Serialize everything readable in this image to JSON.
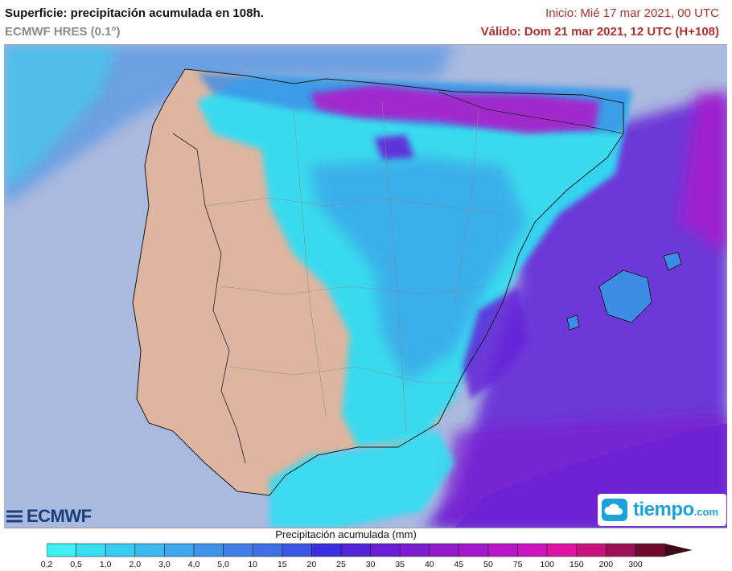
{
  "header": {
    "title": "Superficie: precipitación acumulada en 108h.",
    "model": "ECMWF HRES (0.1°)",
    "init": "Inicio: Mié 17 mar 2021, 00 UTC",
    "valid": "Válido: Dom 21 mar 2021, 12 UTC (H+108)"
  },
  "map": {
    "region": "Iberian Peninsula and Balearic Islands",
    "colors": {
      "sea": "#aab9de",
      "dry_land": "#ddb5a0",
      "light_precip": "#33ddf3",
      "moderate_precip": "#3d8de6",
      "heavy_precip": "#6324d8",
      "very_heavy_precip": "#b218c8"
    }
  },
  "logos": {
    "ecmwf": "ECMWF",
    "tiempo": "tiempo",
    "tiempo_suffix": ".com"
  },
  "legend": {
    "title": "Precipitación acumulada (mm)",
    "labels": [
      "0,2",
      "0,5",
      "1,0",
      "2,0",
      "3,0",
      "4,0",
      "5,0",
      "10",
      "15",
      "20",
      "25",
      "30",
      "35",
      "40",
      "45",
      "50",
      "75",
      "100",
      "150",
      "200",
      "300"
    ],
    "colors": [
      "#3ff0f2",
      "#36e0f2",
      "#38ccf0",
      "#3cb9ee",
      "#3ea6ec",
      "#3f93e8",
      "#4080e6",
      "#3f6fe4",
      "#3a56e2",
      "#3c2fdf",
      "#5424d9",
      "#6a1fd5",
      "#7d1bd1",
      "#911acd",
      "#a418cb",
      "#b816c8",
      "#cc14bf",
      "#e014a4",
      "#c8127c",
      "#9c1056",
      "#6e0a2c"
    ]
  }
}
